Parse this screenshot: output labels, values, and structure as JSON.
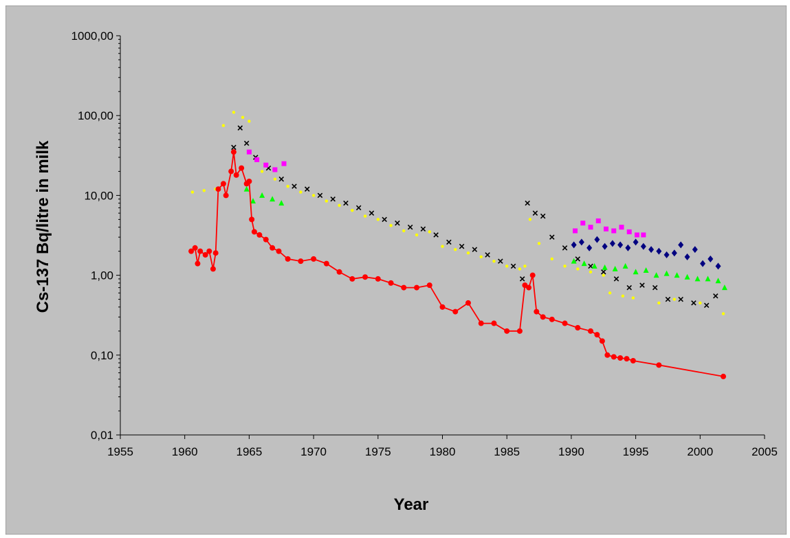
{
  "chart_data": {
    "type": "scatter",
    "title": "",
    "xlabel": "Year",
    "ylabel": "Cs-137 Bq/litre in milk",
    "xlim": [
      1955,
      2005
    ],
    "ylim": [
      0.01,
      1000
    ],
    "y_scale": "log",
    "x_ticks": [
      "1955",
      "1960",
      "1965",
      "1970",
      "1975",
      "1980",
      "1985",
      "1990",
      "1995",
      "2000",
      "2005"
    ],
    "y_ticks": [
      "0,01",
      "0,10",
      "1,00",
      "10,00",
      "100,00",
      "1000,00"
    ],
    "grid": false,
    "legend": "none",
    "background": "#c0c0c0",
    "series": [
      {
        "marker": "dot",
        "color": "#ffff00",
        "x": [
          1960.6,
          1961.5,
          1962.4,
          1963.0,
          1963.8,
          1964.5,
          1965.0,
          1966.0,
          1967.0,
          1968.0,
          1969.0,
          1970.0,
          1971.0,
          1972.0,
          1973.0,
          1974.0,
          1975.0,
          1976.0,
          1977.0,
          1978.0,
          1979.0,
          1980.0,
          1981.0,
          1982.0,
          1983.0,
          1984.0,
          1985.0,
          1986.0,
          1986.4,
          1986.8,
          1987.5,
          1988.5,
          1989.5,
          1990.5,
          1991.5,
          1992.5,
          1993.0,
          1994.0,
          1994.8,
          1996.8,
          1998.0,
          2000.0,
          2001.8
        ],
        "y": [
          11,
          11.5,
          12,
          75,
          110,
          95,
          85,
          20,
          16,
          13,
          11,
          10,
          8.5,
          7.5,
          6.5,
          5.5,
          5,
          4.2,
          3.6,
          3.2,
          3.5,
          2.3,
          2.1,
          1.9,
          1.7,
          1.5,
          1.3,
          1.2,
          1.3,
          5,
          2.5,
          1.6,
          1.3,
          1.2,
          1.1,
          1.0,
          0.6,
          0.55,
          0.52,
          0.45,
          0.5,
          0.45,
          0.33
        ]
      },
      {
        "marker": "x",
        "color": "#000000",
        "x": [
          1963.8,
          1964.3,
          1964.8,
          1965.5,
          1966.5,
          1967.5,
          1968.5,
          1969.5,
          1970.5,
          1971.5,
          1972.5,
          1973.5,
          1974.5,
          1975.5,
          1976.5,
          1977.5,
          1978.5,
          1979.5,
          1980.5,
          1981.5,
          1982.5,
          1983.5,
          1984.5,
          1985.5,
          1986.2,
          1986.6,
          1987.2,
          1987.8,
          1988.5,
          1989.5,
          1990.5,
          1991.5,
          1992.5,
          1993.5,
          1994.5,
          1995.5,
          1996.5,
          1997.5,
          1998.5,
          1999.5,
          2000.5,
          2001.2
        ],
        "y": [
          40,
          70,
          45,
          30,
          22,
          16,
          13,
          12,
          10,
          9,
          8,
          7,
          6,
          5,
          4.5,
          4,
          3.8,
          3.2,
          2.6,
          2.3,
          2.1,
          1.8,
          1.5,
          1.3,
          0.9,
          8,
          6,
          5.5,
          3,
          2.2,
          1.6,
          1.3,
          1.1,
          0.9,
          0.7,
          0.75,
          0.7,
          0.5,
          0.5,
          0.45,
          0.42,
          0.55
        ]
      },
      {
        "marker": "square",
        "color": "#ff00ff",
        "x": [
          1965.0,
          1965.6,
          1966.3,
          1967.0,
          1967.7,
          1990.3,
          1990.9,
          1991.5,
          1992.1,
          1992.7,
          1993.3,
          1993.9,
          1994.5,
          1995.1,
          1995.6
        ],
        "y": [
          35,
          28,
          24,
          21,
          25,
          3.6,
          4.5,
          4.0,
          4.8,
          3.8,
          3.6,
          4.0,
          3.5,
          3.2,
          3.2
        ]
      },
      {
        "marker": "triangle",
        "color": "#00ff00",
        "x": [
          1964.8,
          1965.3,
          1966.0,
          1966.8,
          1967.5,
          1990.2,
          1991.0,
          1991.8,
          1992.6,
          1993.4,
          1994.2,
          1995.0,
          1995.8,
          1996.6,
          1997.4,
          1998.2,
          1999.0,
          1999.8,
          2000.6,
          2001.4,
          2001.9
        ],
        "y": [
          12,
          8.5,
          10,
          9,
          8,
          1.5,
          1.4,
          1.3,
          1.25,
          1.2,
          1.3,
          1.1,
          1.15,
          1.0,
          1.05,
          1.0,
          0.95,
          0.9,
          0.9,
          0.85,
          0.7
        ]
      },
      {
        "marker": "diamond",
        "color": "#000080",
        "x": [
          1990.2,
          1990.8,
          1991.4,
          1992.0,
          1992.6,
          1993.2,
          1993.8,
          1994.4,
          1995.0,
          1995.6,
          1996.2,
          1996.8,
          1997.4,
          1998.0,
          1998.5,
          1999.0,
          1999.6,
          2000.2,
          2000.8,
          2001.4
        ],
        "y": [
          2.4,
          2.6,
          2.2,
          2.8,
          2.3,
          2.5,
          2.4,
          2.2,
          2.6,
          2.3,
          2.1,
          2.0,
          1.8,
          1.9,
          2.4,
          1.7,
          2.1,
          1.4,
          1.6,
          1.3
        ]
      },
      {
        "marker": "circle-line",
        "color": "#ff0000",
        "x": [
          1960.5,
          1960.8,
          1961.0,
          1961.2,
          1961.6,
          1961.9,
          1962.2,
          1962.4,
          1962.6,
          1963.0,
          1963.2,
          1963.6,
          1963.8,
          1964.0,
          1964.4,
          1964.8,
          1965.0,
          1965.2,
          1965.4,
          1965.8,
          1966.3,
          1966.8,
          1967.3,
          1968.0,
          1969.0,
          1970.0,
          1971.0,
          1972.0,
          1973.0,
          1974.0,
          1975.0,
          1976.0,
          1977.0,
          1978.0,
          1979.0,
          1980.0,
          1981.0,
          1982.0,
          1983.0,
          1984.0,
          1985.0,
          1986.0,
          1986.4,
          1986.7,
          1987.0,
          1987.3,
          1987.8,
          1988.5,
          1989.5,
          1990.5,
          1991.5,
          1992.0,
          1992.4,
          1992.8,
          1993.3,
          1993.8,
          1994.3,
          1994.8,
          1996.8,
          2001.8
        ],
        "y": [
          2.0,
          2.2,
          1.4,
          2.0,
          1.8,
          2.0,
          1.2,
          1.9,
          12,
          14,
          10,
          20,
          35,
          18,
          22,
          14,
          15,
          5,
          3.5,
          3.2,
          2.8,
          2.2,
          2.0,
          1.6,
          1.5,
          1.6,
          1.4,
          1.1,
          0.9,
          0.95,
          0.9,
          0.8,
          0.7,
          0.7,
          0.75,
          0.4,
          0.35,
          0.45,
          0.25,
          0.25,
          0.2,
          0.2,
          0.75,
          0.7,
          1.0,
          0.35,
          0.3,
          0.28,
          0.25,
          0.22,
          0.2,
          0.18,
          0.15,
          0.1,
          0.095,
          0.092,
          0.09,
          0.085,
          0.075,
          0.054
        ]
      }
    ]
  }
}
